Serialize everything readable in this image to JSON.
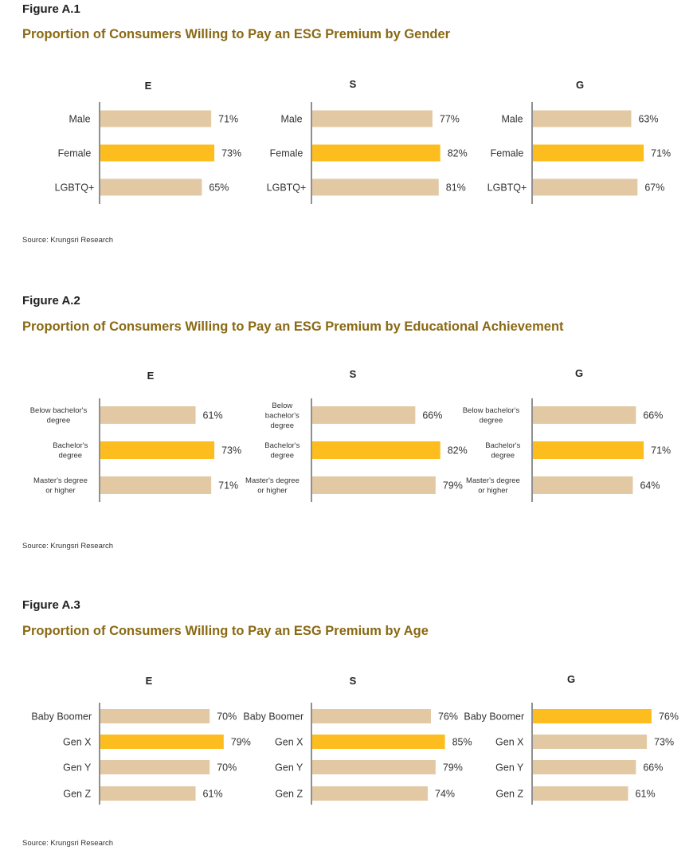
{
  "figures": [
    {
      "label": "Figure A.1",
      "title": "Proportion of Consumers Willing to Pay an ESG Premium by Gender",
      "source": "Source: Krungsri Research"
    },
    {
      "label": "Figure A.2",
      "title": "Proportion of Consumers Willing to Pay an ESG Premium by Educational Achievement",
      "source": "Source: Krungsri Research"
    },
    {
      "label": "Figure A.3",
      "title": "Proportion of Consumers Willing to Pay an ESG Premium by Age",
      "source": "Source: Krungsri Research"
    }
  ],
  "colors": {
    "base": "#e2c9a4",
    "highlight": "#fdbd1e",
    "axis": "#555555",
    "title": "#8a6914"
  },
  "chart_data": [
    {
      "type": "bar",
      "orientation": "horizontal",
      "title": "E",
      "categories": [
        "Male",
        "Female",
        "LGBTQ+"
      ],
      "values": [
        71,
        73,
        65
      ],
      "value_labels": [
        "71%",
        "73%",
        "65%"
      ],
      "highlight": [
        false,
        true,
        false
      ]
    },
    {
      "type": "bar",
      "orientation": "horizontal",
      "title": "S",
      "categories": [
        "Male",
        "Female",
        "LGBTQ+"
      ],
      "values": [
        77,
        82,
        81
      ],
      "value_labels": [
        "77%",
        "82%",
        "81%"
      ],
      "highlight": [
        false,
        true,
        false
      ]
    },
    {
      "type": "bar",
      "orientation": "horizontal",
      "title": "G",
      "categories": [
        "Male",
        "Female",
        "LGBTQ+"
      ],
      "values": [
        63,
        71,
        67
      ],
      "value_labels": [
        "63%",
        "71%",
        "67%"
      ],
      "highlight": [
        false,
        true,
        false
      ]
    },
    {
      "type": "bar",
      "orientation": "horizontal",
      "title": "E",
      "categories": [
        "Below bachelor's degree",
        "Bachelor's degree",
        "Master's degree or higher"
      ],
      "category_lines": [
        [
          "Below bachelor's",
          "degree"
        ],
        [
          "Bachelor's",
          "degree"
        ],
        [
          "Master's degree",
          "or higher"
        ]
      ],
      "values": [
        61,
        73,
        71
      ],
      "value_labels": [
        "61%",
        "73%",
        "71%"
      ],
      "highlight": [
        false,
        true,
        false
      ]
    },
    {
      "type": "bar",
      "orientation": "horizontal",
      "title": "S",
      "categories": [
        "Below bachelor's degree",
        "Bachelor's degree",
        "Master's degree or higher"
      ],
      "category_lines": [
        [
          "Below",
          "bachelor's",
          "degree"
        ],
        [
          "Bachelor's",
          "degree"
        ],
        [
          "Master's degree",
          "or higher"
        ]
      ],
      "values": [
        66,
        82,
        79
      ],
      "value_labels": [
        "66%",
        "82%",
        "79%"
      ],
      "highlight": [
        false,
        true,
        false
      ]
    },
    {
      "type": "bar",
      "orientation": "horizontal",
      "title": "G",
      "categories": [
        "Below bachelor's degree",
        "Bachelor's degree",
        "Master's degree or higher"
      ],
      "category_lines": [
        [
          "Below bachelor's",
          "degree"
        ],
        [
          "Bachelor's",
          "degree"
        ],
        [
          "Master's degree",
          "or higher"
        ]
      ],
      "values": [
        66,
        71,
        64
      ],
      "value_labels": [
        "66%",
        "71%",
        "64%"
      ],
      "highlight": [
        false,
        true,
        false
      ]
    },
    {
      "type": "bar",
      "orientation": "horizontal",
      "title": "E",
      "categories": [
        "Baby Boomer",
        "Gen X",
        "Gen Y",
        "Gen Z"
      ],
      "values": [
        70,
        79,
        70,
        61
      ],
      "value_labels": [
        "70%",
        "79%",
        "70%",
        "61%"
      ],
      "highlight": [
        false,
        true,
        false,
        false
      ]
    },
    {
      "type": "bar",
      "orientation": "horizontal",
      "title": "S",
      "categories": [
        "Baby Boomer",
        "Gen X",
        "Gen Y",
        "Gen Z"
      ],
      "values": [
        76,
        85,
        79,
        74
      ],
      "value_labels": [
        "76%",
        "85%",
        "79%",
        "74%"
      ],
      "highlight": [
        false,
        true,
        false,
        false
      ]
    },
    {
      "type": "bar",
      "orientation": "horizontal",
      "title": "G",
      "categories": [
        "Baby Boomer",
        "Gen X",
        "Gen Y",
        "Gen Z"
      ],
      "values": [
        76,
        73,
        66,
        61
      ],
      "value_labels": [
        "76%",
        "73%",
        "66%",
        "61%"
      ],
      "highlight": [
        true,
        false,
        false,
        false
      ]
    }
  ]
}
